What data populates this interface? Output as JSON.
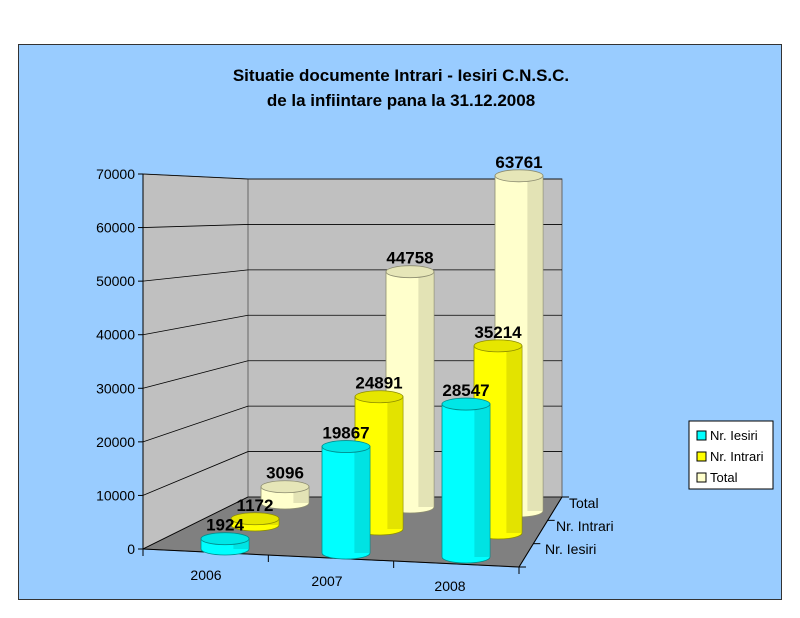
{
  "chart_data": {
    "type": "bar",
    "title_line1": "Situatie documente Intrari - Iesiri C.N.S.C.",
    "title_line2": "de la infiintare pana la 31.12.2008",
    "categories": [
      "2006",
      "2007",
      "2008"
    ],
    "series": [
      {
        "name": "Nr. Iesiri",
        "values": [
          1924,
          19867,
          28547
        ],
        "color": "#00ffff"
      },
      {
        "name": "Nr. Intrari",
        "values": [
          1172,
          24891,
          35214
        ],
        "color": "#ffff00"
      },
      {
        "name": "Total",
        "values": [
          3096,
          44758,
          63761
        ],
        "color": "#ffffcc"
      }
    ],
    "ylim": [
      0,
      70000
    ],
    "yticks": [
      "0",
      "10000",
      "20000",
      "30000",
      "40000",
      "50000",
      "60000",
      "70000"
    ],
    "grid": true,
    "legend_position": "right",
    "style": "3d-cylinder"
  }
}
